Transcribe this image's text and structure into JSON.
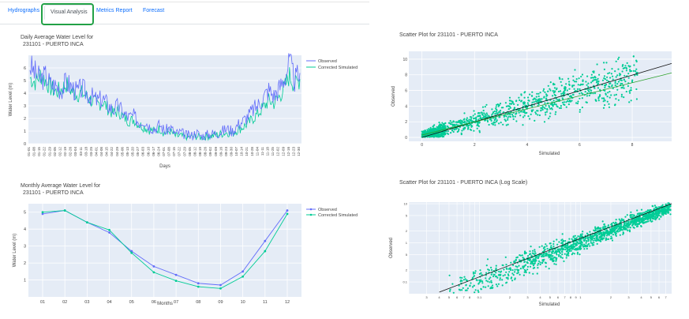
{
  "tabs": [
    {
      "label": "Hydrographs"
    },
    {
      "label": "Visual Analysis"
    },
    {
      "label": "Metrics Report"
    },
    {
      "label": "Forecast"
    }
  ],
  "daily": {
    "title_line1": "Daily Average Water Level for",
    "title_line2": "231101 - PUERTO INCA",
    "xlabel": "Days",
    "ylabel": "Water Level (m)",
    "legend": [
      "Observed",
      "Corrected Simulated"
    ],
    "colors": {
      "observed": "#636efa",
      "simulated": "#00cc96"
    }
  },
  "monthly": {
    "title_line1": "Monthly Average Water Level for",
    "title_line2": "231101 - PUERTO INCA",
    "xlabel": "Months",
    "ylabel": "Water Level (m)",
    "legend": [
      "Observed",
      "Corrected Simulated"
    ]
  },
  "scatter": {
    "title": "Scatter Plot for 231101 - PUERTO INCA",
    "xlabel": "Simulated",
    "ylabel": "Observed"
  },
  "scatter_log": {
    "title": "Scatter Plot for 231101 - PUERTO INCA (Log Scale)",
    "xlabel": "Simulated",
    "ylabel": "Observed"
  },
  "chart_data": [
    {
      "type": "line",
      "title": "Daily Average Water Level for 231101 - PUERTO INCA",
      "xlabel": "Days",
      "ylabel": "Water Level (m)",
      "ylim": [
        0,
        7
      ],
      "yticks": [
        0,
        1,
        2,
        3,
        4,
        5,
        6
      ],
      "xticks": [
        "01-01",
        "01-08",
        "01-15",
        "01-22",
        "01-29",
        "02-05",
        "02-12",
        "02-19",
        "02-26",
        "03-04",
        "03-11",
        "03-18",
        "03-25",
        "04-01",
        "04-08",
        "04-15",
        "04-22",
        "04-29",
        "05-06",
        "05-13",
        "05-20",
        "05-27",
        "06-03",
        "06-10",
        "06-17",
        "06-24",
        "07-01",
        "07-08",
        "07-15",
        "07-22",
        "07-29",
        "08-05",
        "08-12",
        "08-19",
        "08-26",
        "09-02",
        "09-09",
        "09-16",
        "09-23",
        "09-30",
        "10-07",
        "10-14",
        "10-21",
        "10-28",
        "11-04",
        "11-11",
        "11-18",
        "11-25",
        "12-02",
        "12-09",
        "12-16",
        "12-23",
        "12-30"
      ],
      "series": [
        {
          "name": "Observed",
          "values": [
            6.2,
            5.6,
            5.1,
            5.4,
            4.7,
            4.6,
            4.3,
            4.9,
            4.5,
            4.1,
            4.4,
            4.0,
            3.7,
            3.4,
            3.6,
            3.1,
            2.7,
            3.0,
            2.4,
            2.1,
            2.2,
            1.7,
            1.9,
            1.4,
            1.2,
            1.5,
            1.0,
            1.3,
            0.8,
            0.9,
            0.7,
            0.6,
            0.9,
            0.6,
            0.7,
            0.8,
            0.8,
            1.0,
            1.2,
            1.0,
            1.5,
            1.8,
            2.2,
            2.7,
            3.1,
            3.7,
            4.3,
            3.8,
            4.4,
            5.2,
            6.5,
            5.0,
            5.6
          ]
        },
        {
          "name": "Corrected Simulated",
          "values": [
            5.2,
            4.9,
            5.5,
            5.0,
            4.4,
            4.1,
            4.3,
            4.7,
            4.2,
            3.9,
            4.0,
            3.7,
            3.4,
            3.1,
            3.3,
            2.8,
            2.4,
            2.6,
            2.1,
            1.8,
            1.9,
            1.5,
            1.3,
            1.1,
            1.0,
            1.2,
            0.8,
            1.0,
            0.6,
            0.6,
            0.5,
            0.5,
            0.6,
            0.5,
            0.6,
            0.6,
            0.7,
            0.8,
            0.9,
            0.8,
            1.1,
            1.3,
            1.6,
            2.0,
            2.4,
            2.9,
            3.4,
            3.2,
            3.7,
            4.4,
            5.4,
            4.6,
            5.1
          ]
        }
      ]
    },
    {
      "type": "line",
      "title": "Monthly Average Water Level for 231101 - PUERTO INCA",
      "xlabel": "Months",
      "ylabel": "Water Level (m)",
      "ylim": [
        0,
        5.5
      ],
      "yticks": [
        1,
        2,
        3,
        4,
        5
      ],
      "categories": [
        "01",
        "02",
        "03",
        "04",
        "05",
        "06",
        "07",
        "08",
        "09",
        "10",
        "11",
        "12"
      ],
      "series": [
        {
          "name": "Observed",
          "values": [
            4.9,
            5.1,
            4.4,
            3.8,
            2.7,
            1.8,
            1.3,
            0.8,
            0.7,
            1.5,
            3.3,
            5.1
          ]
        },
        {
          "name": "Corrected Simulated",
          "values": [
            5.0,
            5.1,
            4.4,
            3.95,
            2.6,
            1.45,
            0.95,
            0.6,
            0.5,
            1.2,
            2.7,
            4.9
          ]
        }
      ]
    },
    {
      "type": "scatter",
      "title": "Scatter Plot for 231101 - PUERTO INCA",
      "xlabel": "Simulated",
      "ylabel": "Observed",
      "xlim": [
        -0.5,
        9.5
      ],
      "ylim": [
        -0.5,
        11
      ],
      "xticks": [
        0,
        2,
        4,
        6,
        8
      ],
      "yticks": [
        0,
        2,
        4,
        6,
        8,
        10
      ],
      "ytick_labels": [
        "0",
        "2",
        "4",
        "6",
        "8",
        "10"
      ]
    },
    {
      "type": "scatter",
      "title": "Scatter Plot for 231101 - PUERTO INCA (Log Scale)",
      "xlabel": "Simulated",
      "ylabel": "Observed",
      "log_x": true,
      "log_y": true,
      "xlim": [
        0.02,
        8
      ],
      "ylim": [
        0.05,
        11
      ]
    }
  ]
}
